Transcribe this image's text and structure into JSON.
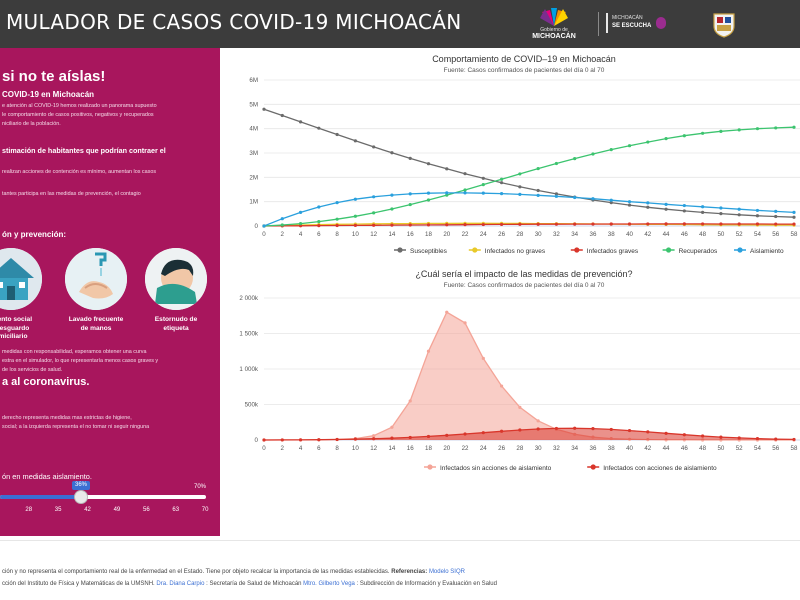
{
  "header": {
    "title": "MULADOR DE CASOS COVID-19 MICHOACÁN",
    "logo_gob_small": "Gobierno de",
    "logo_gob_big": "MICHOACÁN",
    "logo_escucha_small": "MICHOACÁN",
    "logo_escucha_big": "SE ESCUCHA",
    "colors": {
      "bg": "#3c3c3c"
    }
  },
  "left": {
    "heading": "si no te aíslas!",
    "subheading": "COVID-19 en Michoacán",
    "intro_1": "e atención al COVID-19 hemos realizado un panorama supuesto",
    "intro_2": "le comportamiento de casos positivos, negativos y recuperados",
    "intro_3": "niciliario de la población.",
    "estimation_title": "stimación de habitantes que podrían contraer el",
    "estimation_text": "realizan acciones de contención es mínimo, aumentan los casos",
    "participation_text": "tantes participa en las medidas de prevención, el contagio",
    "prevention_title": "ón y prevención:",
    "measures": [
      {
        "label_1": "miento social",
        "label_2": "r resguardo",
        "label_3": "omiciliario"
      },
      {
        "label_1": "Lavado frecuente",
        "label_2": "de manos",
        "label_3": ""
      },
      {
        "label_1": "Estornudo de",
        "label_2": "etiqueta",
        "label_3": ""
      }
    ],
    "resp_1": "medidas con responsabilidad, esperamos obtener una curva",
    "resp_2": "estra en el simulador, lo que representaría menos casos graves y",
    "resp_3": "de los servicios de salud.",
    "coronavirus": "a al coronavirus.",
    "slider_desc_1": "derecho representa medidas mas estrictas de higiene,",
    "slider_desc_2": "social; a la izquierda representa el no tomar ni seguir ninguna",
    "slider_title": "ón en medidas aislamiento.",
    "slider": {
      "value_label": "36%",
      "value": 36,
      "max_label": "70%",
      "ticks": [
        "",
        "28",
        "35",
        "42",
        "49",
        "56",
        "63",
        "70"
      ]
    },
    "colors": {
      "bg": "#a8165d",
      "slider": "#3b6fd3"
    }
  },
  "chart_data": [
    {
      "type": "line",
      "title": "Comportamiento de COVID–19 en Michoacán",
      "subtitle": "Fuente: Casos confirmados de pacientes del día 0 al 70",
      "x": [
        0,
        2,
        4,
        6,
        8,
        10,
        12,
        14,
        16,
        18,
        20,
        22,
        24,
        26,
        28,
        30,
        32,
        34,
        36,
        38,
        40,
        42,
        44,
        46,
        48,
        50,
        52,
        54,
        56,
        58
      ],
      "xticks": [
        "0",
        "2",
        "4",
        "6",
        "8",
        "10",
        "12",
        "14",
        "16",
        "18",
        "20",
        "22",
        "24",
        "26",
        "28",
        "30",
        "32",
        "34",
        "36",
        "38",
        "40",
        "42",
        "44",
        "46",
        "48",
        "50",
        "52",
        "54",
        "56",
        "58"
      ],
      "ylim": [
        0,
        6000000
      ],
      "yticks": [
        0,
        1000000,
        2000000,
        3000000,
        4000000,
        5000000,
        6000000
      ],
      "yticklabels": [
        "0",
        "1M",
        "2M",
        "3M",
        "4M",
        "5M",
        "6M"
      ],
      "legend_position": "bottom",
      "series": [
        {
          "name": "Susceptibles",
          "color": "#6b6b6b",
          "values": [
            4800000,
            4540000,
            4280000,
            4020000,
            3760000,
            3500000,
            3250000,
            3010000,
            2780000,
            2560000,
            2350000,
            2150000,
            1960000,
            1780000,
            1610000,
            1460000,
            1320000,
            1190000,
            1070000,
            960000,
            860000,
            770000,
            690000,
            620000,
            560000,
            510000,
            460000,
            420000,
            390000,
            360000
          ]
        },
        {
          "name": "Infectados no graves",
          "color": "#e8c92a",
          "values": [
            0,
            20000,
            40000,
            55000,
            70000,
            80000,
            90000,
            95000,
            100000,
            105000,
            108000,
            110000,
            110000,
            108000,
            105000,
            100000,
            95000,
            90000,
            85000,
            80000,
            75000,
            70000,
            65000,
            60000,
            55000,
            50000,
            46000,
            42000,
            38000,
            35000
          ]
        },
        {
          "name": "Infectados graves",
          "color": "#d9362b",
          "values": [
            0,
            5000,
            10000,
            15000,
            20000,
            25000,
            30000,
            35000,
            40000,
            45000,
            50000,
            55000,
            60000,
            65000,
            70000,
            72000,
            75000,
            78000,
            80000,
            82000,
            84000,
            85000,
            86000,
            86000,
            85000,
            84000,
            83000,
            82000,
            80000,
            78000
          ]
        },
        {
          "name": "Recuperados",
          "color": "#3cc46f",
          "values": [
            0,
            40000,
            100000,
            180000,
            280000,
            400000,
            540000,
            700000,
            880000,
            1070000,
            1270000,
            1480000,
            1700000,
            1920000,
            2140000,
            2360000,
            2570000,
            2770000,
            2960000,
            3140000,
            3300000,
            3450000,
            3590000,
            3710000,
            3810000,
            3890000,
            3950000,
            4000000,
            4030000,
            4060000
          ]
        },
        {
          "name": "Aislamiento",
          "color": "#2aa0dd",
          "values": [
            0,
            300000,
            560000,
            780000,
            960000,
            1100000,
            1200000,
            1270000,
            1320000,
            1350000,
            1360000,
            1360000,
            1350000,
            1330000,
            1300000,
            1260000,
            1220000,
            1170000,
            1120000,
            1060000,
            1000000,
            950000,
            890000,
            840000,
            790000,
            740000,
            690000,
            640000,
            600000,
            560000
          ]
        }
      ]
    },
    {
      "type": "area",
      "title": "¿Cuál sería el impacto de las medidas de prevención?",
      "subtitle": "Fuente: Casos confirmados de pacientes del día 0 al 70",
      "x": [
        0,
        2,
        4,
        6,
        8,
        10,
        12,
        14,
        16,
        18,
        20,
        22,
        24,
        26,
        28,
        30,
        32,
        34,
        36,
        38,
        40,
        42,
        44,
        46,
        48,
        50,
        52,
        54,
        56,
        58
      ],
      "xticks": [
        "0",
        "2",
        "4",
        "6",
        "8",
        "10",
        "12",
        "14",
        "16",
        "18",
        "20",
        "22",
        "24",
        "26",
        "28",
        "30",
        "32",
        "34",
        "36",
        "38",
        "40",
        "42",
        "44",
        "46",
        "48",
        "50",
        "52",
        "54",
        "56",
        "58"
      ],
      "ylim": [
        0,
        2000000
      ],
      "yticks": [
        0,
        500000,
        1000000,
        1500000,
        2000000
      ],
      "yticklabels": [
        "0",
        "500k",
        "1 000k",
        "1 500k",
        "2 000k"
      ],
      "legend_position": "bottom",
      "series": [
        {
          "name": "Infectados sin acciones de aislamiento",
          "color": "#f4a497",
          "values": [
            0,
            0,
            1000,
            3000,
            8000,
            20000,
            60000,
            180000,
            550000,
            1250000,
            1800000,
            1650000,
            1150000,
            760000,
            460000,
            270000,
            150000,
            80000,
            40000,
            20000,
            10000,
            5000,
            2000,
            1000,
            0,
            0,
            0,
            0,
            0,
            0
          ]
        },
        {
          "name": "Infectados con acciones de aislamiento",
          "color": "#d9362b",
          "values": [
            0,
            1000,
            2000,
            4000,
            7000,
            12000,
            18000,
            26000,
            36000,
            50000,
            66000,
            84000,
            103000,
            123000,
            141000,
            155000,
            163000,
            165000,
            160000,
            149000,
            133000,
            114000,
            94000,
            74000,
            56000,
            41000,
            29000,
            20000,
            13000,
            8000
          ]
        }
      ]
    }
  ],
  "footer": {
    "line1_text": "ción y no representa el comportamiento real de la enfermedad en el Estado. Tiene por objeto recalcar la importancia de las medidas establecidas.",
    "line1_ref_label": "Referencias:",
    "line1_ref_link": "Modelo SIQR",
    "line2_a": "cción del Instituto de Física y Matemáticas de la UMSNH.",
    "line2_link1": "Dra. Diana Carpio",
    "line2_b": ": Secretaría de Salud de Michoacán",
    "line2_link2": "Mtro. Gilberto Vega",
    "line2_c": ": Subdirección de Información y Evaluación en Salud"
  }
}
